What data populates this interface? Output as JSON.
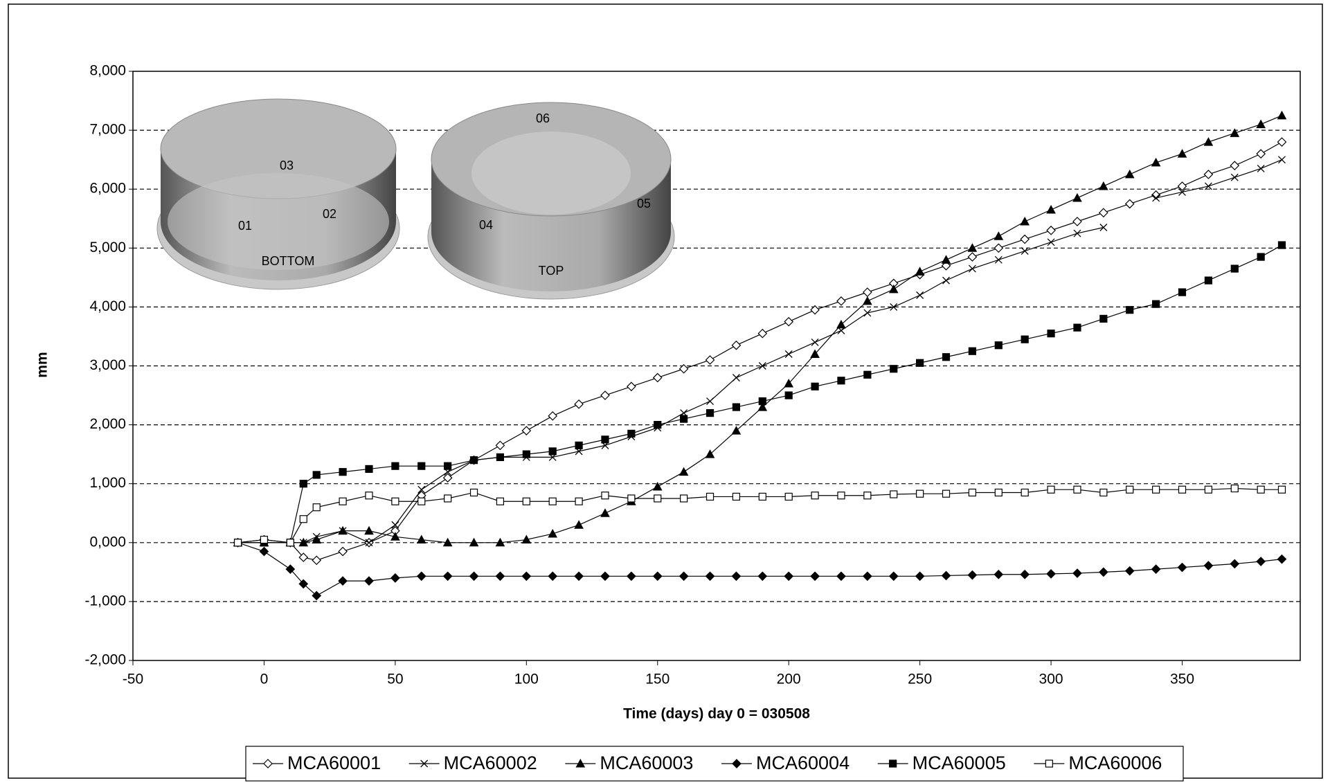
{
  "chart_data": {
    "type": "line",
    "x_label": "Time (days) day 0 = 030508",
    "y_label": "mm",
    "annotations": [
      "03",
      "01",
      "02",
      "BOTTOM",
      "06",
      "04",
      "05",
      "TOP"
    ],
    "x": [
      -10,
      0,
      10,
      15,
      20,
      30,
      40,
      50,
      60,
      70,
      80,
      90,
      100,
      110,
      120,
      130,
      140,
      150,
      160,
      170,
      180,
      190,
      200,
      210,
      220,
      230,
      240,
      250,
      260,
      270,
      280,
      290,
      300,
      310,
      320,
      330,
      340,
      350,
      360,
      370,
      380,
      388
    ],
    "series": [
      {
        "name": "MCA60001",
        "color": "#000000",
        "marker": "diamond-open",
        "values": [
          0,
          50,
          0,
          -250,
          -300,
          -150,
          0,
          200,
          800,
          1100,
          1400,
          1650,
          1900,
          2150,
          2350,
          2500,
          2650,
          2800,
          2950,
          3100,
          3350,
          3550,
          3750,
          3950,
          4100,
          4250,
          4400,
          4550,
          4700,
          4850,
          5000,
          5150,
          5300,
          5450,
          5600,
          5750,
          5900,
          6050,
          6250,
          6400,
          6600,
          6800
        ]
      },
      {
        "name": "MCA60002",
        "color": "#000000",
        "marker": "x",
        "values": [
          0,
          0,
          0,
          0,
          100,
          200,
          0,
          300,
          900,
          1200,
          1400,
          1450,
          1450,
          1450,
          1550,
          1650,
          1800,
          1950,
          2200,
          2400,
          2800,
          3000,
          3200,
          3400,
          3600,
          3900,
          4000,
          4200,
          4450,
          4650,
          4800,
          4950,
          5100,
          5250,
          5350,
          null,
          5850,
          5950,
          6050,
          6200,
          6350,
          6500
        ]
      },
      {
        "name": "MCA60003",
        "color": "#000000",
        "marker": "triangle",
        "values": [
          0,
          0,
          0,
          0,
          50,
          200,
          200,
          100,
          50,
          0,
          0,
          0,
          50,
          150,
          300,
          500,
          700,
          950,
          1200,
          1500,
          1900,
          2300,
          2700,
          3200,
          3700,
          4100,
          4300,
          4600,
          4800,
          5000,
          5200,
          5450,
          5650,
          5850,
          6050,
          6250,
          6450,
          6600,
          6800,
          6950,
          7100,
          7250
        ]
      },
      {
        "name": "MCA60004",
        "color": "#000000",
        "marker": "diamond",
        "values": [
          0,
          -150,
          -450,
          -700,
          -900,
          -650,
          -650,
          -600,
          -570,
          -570,
          -570,
          -570,
          -570,
          -570,
          -570,
          -570,
          -570,
          -570,
          -570,
          -570,
          -570,
          -570,
          -570,
          -570,
          -570,
          -570,
          -570,
          -570,
          -560,
          -550,
          -540,
          -540,
          -530,
          -520,
          -500,
          -480,
          -450,
          -420,
          -390,
          -360,
          -320,
          -280
        ]
      },
      {
        "name": "MCA60005",
        "color": "#000000",
        "marker": "square",
        "values": [
          0,
          0,
          0,
          1000,
          1150,
          1200,
          1250,
          1300,
          1300,
          1300,
          1400,
          1450,
          1500,
          1550,
          1650,
          1750,
          1850,
          2000,
          2100,
          2200,
          2300,
          2400,
          2500,
          2650,
          2750,
          2850,
          2950,
          3050,
          3150,
          3250,
          3350,
          3450,
          3550,
          3650,
          3800,
          3950,
          4050,
          4250,
          4450,
          4650,
          4850,
          5050
        ]
      },
      {
        "name": "MCA60006",
        "color": "#000000",
        "marker": "square-open",
        "values": [
          0,
          50,
          0,
          400,
          600,
          700,
          800,
          700,
          700,
          750,
          850,
          700,
          700,
          700,
          700,
          800,
          750,
          750,
          750,
          780,
          780,
          780,
          780,
          800,
          800,
          800,
          820,
          830,
          830,
          850,
          850,
          850,
          900,
          900,
          850,
          900,
          900,
          900,
          900,
          920,
          900,
          900
        ]
      }
    ],
    "xlim": [
      -50,
      395
    ],
    "xticks": [
      -50,
      0,
      50,
      100,
      150,
      200,
      250,
      300,
      350
    ],
    "ylim": [
      -2000,
      8000
    ],
    "yticks": [
      {
        "value": -2000,
        "label": "-2,000"
      },
      {
        "value": -1000,
        "label": "-1,000"
      },
      {
        "value": 0,
        "label": "0,000"
      },
      {
        "value": 1000,
        "label": "1,000"
      },
      {
        "value": 2000,
        "label": "2,000"
      },
      {
        "value": 3000,
        "label": "3,000"
      },
      {
        "value": 4000,
        "label": "4,000"
      },
      {
        "value": 5000,
        "label": "5,000"
      },
      {
        "value": 6000,
        "label": "6,000"
      },
      {
        "value": 7000,
        "label": "7,000"
      },
      {
        "value": 8000,
        "label": "8,000"
      }
    ],
    "grid": true,
    "legend": "bottom"
  }
}
